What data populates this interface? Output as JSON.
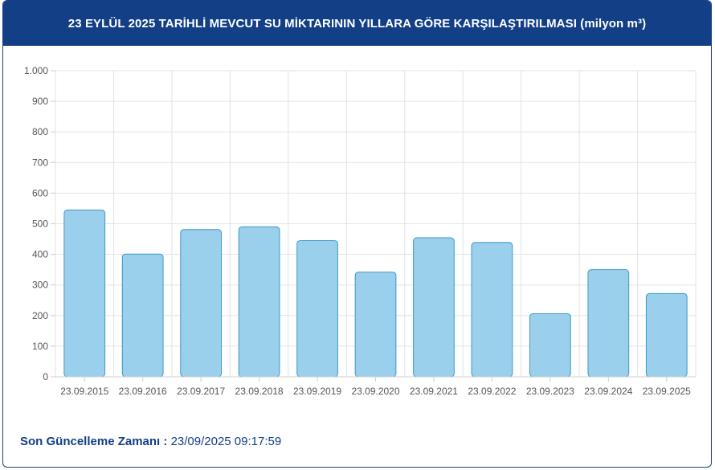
{
  "header": {
    "title": "23 EYLÜL 2025 TARİHLİ MEVCUT SU MİKTARININ YILLARA GÖRE KARŞILAŞTIRILMASI (milyon m³)"
  },
  "footer": {
    "label": "Son Güncelleme Zamanı :",
    "timestamp": "23/09/2025 09:17:59"
  },
  "chart_data": {
    "type": "bar",
    "categories": [
      "23.09.2015",
      "23.09.2016",
      "23.09.2017",
      "23.09.2018",
      "23.09.2019",
      "23.09.2020",
      "23.09.2021",
      "23.09.2022",
      "23.09.2023",
      "23.09.2024",
      "23.09.2025"
    ],
    "values": [
      545,
      401,
      481,
      490,
      445,
      342,
      454,
      439,
      206,
      350,
      272
    ],
    "ylim": [
      0,
      1000
    ],
    "yticks": [
      0,
      100,
      200,
      300,
      400,
      500,
      600,
      700,
      800,
      900,
      1000
    ],
    "ytick_labels": [
      "0",
      "100",
      "200",
      "300",
      "400",
      "500",
      "600",
      "700",
      "800",
      "900",
      "1.000"
    ],
    "grid": true,
    "colors": {
      "bar_fill": "#9bd0ec",
      "bar_stroke": "#3d97cc",
      "grid": "#e3e3e3"
    }
  }
}
